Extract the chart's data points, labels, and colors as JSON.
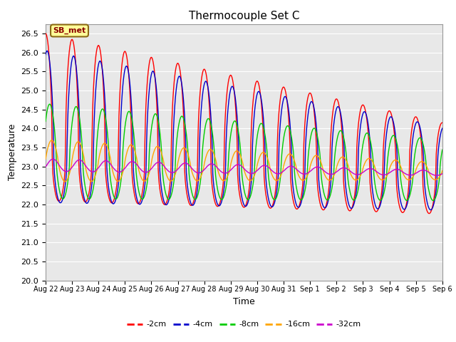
{
  "title": "Thermocouple Set C",
  "xlabel": "Time",
  "ylabel": "Temperature",
  "annotation_text": "SB_met",
  "annotation_color": "#8B0000",
  "annotation_bg": "#FFFF99",
  "annotation_edge": "#8B6914",
  "ylim": [
    20.0,
    26.75
  ],
  "yticks": [
    20.0,
    20.5,
    21.0,
    21.5,
    22.0,
    22.5,
    23.0,
    23.5,
    24.0,
    24.5,
    25.0,
    25.5,
    26.0,
    26.5
  ],
  "fig_bg": "#FFFFFF",
  "plot_bg": "#E8E8E8",
  "grid_color": "#FFFFFF",
  "line_colors": {
    "-2cm": "#FF0000",
    "-4cm": "#0000CC",
    "-8cm": "#00CC00",
    "-16cm": "#FFA500",
    "-32cm": "#CC00CC"
  },
  "legend_labels": [
    "-2cm",
    "-4cm",
    "-8cm",
    "-16cm",
    "-32cm"
  ],
  "legend_colors": [
    "#FF0000",
    "#0000CC",
    "#00CC00",
    "#FFA500",
    "#CC00CC"
  ],
  "xtick_labels": [
    "Aug 22",
    "Aug 23",
    "Aug 24",
    "Aug 25",
    "Aug 26",
    "Aug 27",
    "Aug 28",
    "Aug 29",
    "Aug 30",
    "Aug 31",
    "Sep 1",
    "Sep 2",
    "Sep 3",
    "Sep 4",
    "Sep 5",
    "Sep 6"
  ]
}
